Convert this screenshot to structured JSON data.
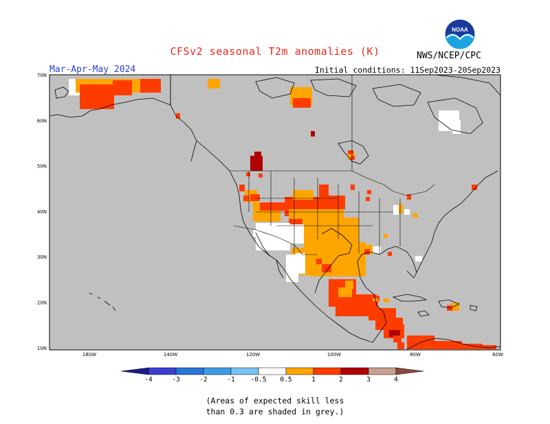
{
  "title": "CFSv2 seasonal T2m anomalies (K)",
  "season": "Mar-Apr-May 2024",
  "initial_conditions": "Initial conditions: 11Sep2023-20Sep2023",
  "agency": "NWS/NCEP/CPC",
  "logo": {
    "text": "NOAA",
    "colors": {
      "top": "#1b3a9b",
      "bottom": "#1aa3e0"
    }
  },
  "map": {
    "background": "#c0c0c0",
    "lat_labels": [
      "70N",
      "60N",
      "50N",
      "40N",
      "30N",
      "20N",
      "10N"
    ],
    "lon_labels": [
      "180W",
      "140W",
      "120W",
      "100W",
      "80W",
      "60W"
    ]
  },
  "colorbar": {
    "ticks": [
      "-4",
      "-3",
      "-2",
      "-1",
      "-0.5",
      "0.5",
      "1",
      "2",
      "3",
      "4"
    ],
    "colors": {
      "lt_minus4": "#1e1a8c",
      "m4_m3": "#3a3fd0",
      "m3_m2": "#2b74d8",
      "m2_m1": "#3d9be6",
      "m1_m05": "#79c2f2",
      "neutral": "#ffffff",
      "p05_p1": "#ffa500",
      "p1_p2": "#ff3c00",
      "p2_p3": "#b00000",
      "p3_p4": "#c8a090",
      "gt_4": "#8b4a3a"
    }
  },
  "note_lines": [
    "(Areas of expected skill less",
    "than 0.3 are shaded in grey.)"
  ]
}
